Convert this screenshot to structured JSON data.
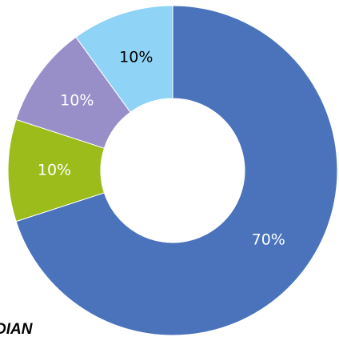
{
  "chart_data": {
    "type": "donut",
    "values": [
      70,
      10,
      10,
      10
    ],
    "value_labels": [
      "70%",
      "10%",
      "10%",
      "10%"
    ],
    "colors": [
      "#4a73bc",
      "#9cbc1b",
      "#998fc8",
      "#8fd4f6"
    ],
    "annotation": "DIAN"
  }
}
